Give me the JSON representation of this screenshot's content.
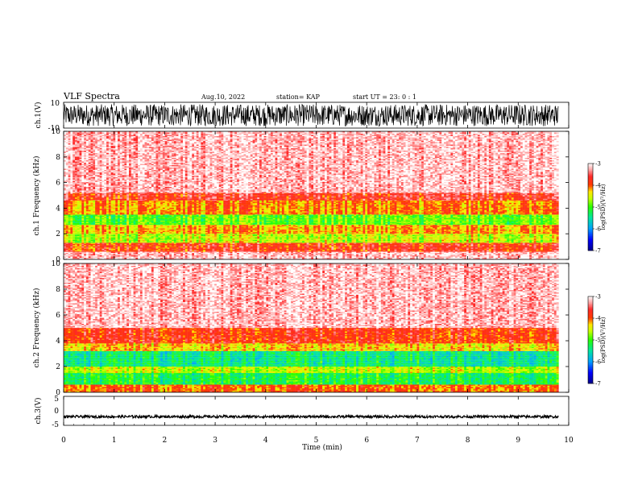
{
  "header": {
    "title": "VLF Spectra",
    "date": "Aug.10, 2022",
    "station": "station= KAP",
    "start": "start UT =   23: 0  : 1"
  },
  "colors": {
    "low": "#00008b",
    "mid": "#00ff00",
    "midhigh": "#ffff00",
    "high": "#ff0000",
    "top": "#ffffff",
    "trace": "#000000"
  },
  "chart_data": [
    {
      "type": "line",
      "panel": "ch1-waveform",
      "ylabel": "ch.1(V)",
      "xlim": [
        0,
        10
      ],
      "ylim": [
        -10,
        10
      ],
      "yticks": [
        "10",
        "-10"
      ],
      "note_values": "dense noise trace, amplitude approximately ±8 V over 0–9.8 min"
    },
    {
      "type": "heatmap",
      "panel": "ch1-spectrogram",
      "ylabel": "ch.1 Frequency (kHz)",
      "xlim": [
        0,
        10
      ],
      "ylim": [
        0,
        10
      ],
      "yticks": [
        "0",
        "2",
        "4",
        "6",
        "8",
        "10"
      ],
      "data_extent_min": 9.8,
      "bands": [
        {
          "from_khz": 0.0,
          "to_khz": 0.6,
          "level": -3.2
        },
        {
          "from_khz": 0.6,
          "to_khz": 1.3,
          "level": -3.8
        },
        {
          "from_khz": 1.3,
          "to_khz": 2.0,
          "level": -4.6
        },
        {
          "from_khz": 2.0,
          "to_khz": 2.7,
          "level": -4.2
        },
        {
          "from_khz": 2.7,
          "to_khz": 3.5,
          "level": -4.9
        },
        {
          "from_khz": 3.5,
          "to_khz": 4.6,
          "level": -4.1
        },
        {
          "from_khz": 4.6,
          "to_khz": 5.2,
          "level": -3.7
        },
        {
          "from_khz": 5.2,
          "to_khz": 10.0,
          "level": -3.2
        }
      ],
      "colorbar": {
        "label": "log(PSD)(V²/Hz)",
        "ticks": [
          "-3",
          "-4",
          "-5",
          "-6",
          "-7"
        ],
        "range": [
          -7,
          -3
        ]
      }
    },
    {
      "type": "heatmap",
      "panel": "ch2-spectrogram",
      "ylabel": "ch.2 Frequency (kHz)",
      "xlim": [
        0,
        10
      ],
      "ylim": [
        0,
        10
      ],
      "yticks": [
        "0",
        "2",
        "4",
        "6",
        "8",
        "10"
      ],
      "data_extent_min": 9.8,
      "bands": [
        {
          "from_khz": 0.0,
          "to_khz": 0.6,
          "level": -4.0
        },
        {
          "from_khz": 0.6,
          "to_khz": 1.5,
          "level": -5.2
        },
        {
          "from_khz": 1.5,
          "to_khz": 2.0,
          "level": -4.6
        },
        {
          "from_khz": 2.0,
          "to_khz": 3.2,
          "level": -5.4
        },
        {
          "from_khz": 3.2,
          "to_khz": 3.8,
          "level": -4.3
        },
        {
          "from_khz": 3.8,
          "to_khz": 5.0,
          "level": -3.8
        },
        {
          "from_khz": 5.0,
          "to_khz": 10.0,
          "level": -3.2
        }
      ],
      "colorbar": {
        "label": "log(PSD)(V²/Hz)",
        "ticks": [
          "-3",
          "-4",
          "-5",
          "-6",
          "-7"
        ],
        "range": [
          -7,
          -3
        ]
      }
    },
    {
      "type": "line",
      "panel": "ch3-waveform",
      "ylabel": "ch.3(V)",
      "xlim": [
        0,
        10
      ],
      "ylim": [
        -5,
        5
      ],
      "yticks": [
        "5",
        "0",
        "-5"
      ],
      "note_values": "narrow band around -2 V"
    }
  ],
  "xaxis": {
    "label": "Time  (min)",
    "ticks": [
      "0",
      "1",
      "2",
      "3",
      "4",
      "5",
      "6",
      "7",
      "8",
      "9",
      "10"
    ]
  }
}
